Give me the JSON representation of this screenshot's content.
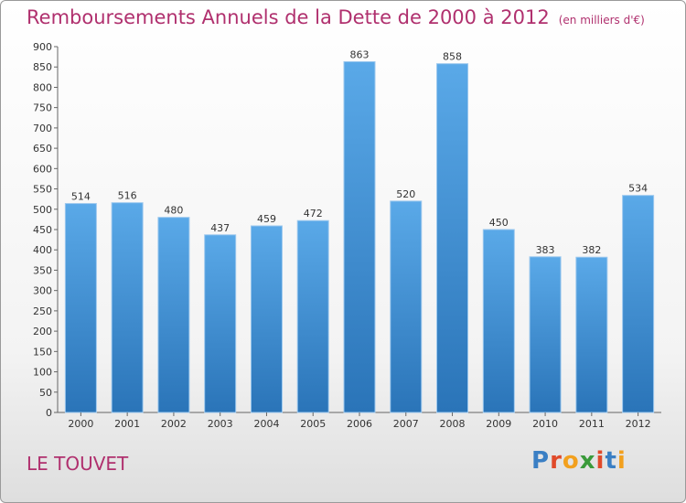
{
  "chart_data": {
    "type": "bar",
    "title": "Remboursements Annuels de la Dette de 2000 à 2012",
    "subtitle": "(en milliers d'€)",
    "categories": [
      "2000",
      "2001",
      "2002",
      "2003",
      "2004",
      "2005",
      "2006",
      "2007",
      "2008",
      "2009",
      "2010",
      "2011",
      "2012"
    ],
    "values": [
      514,
      516,
      480,
      437,
      459,
      472,
      863,
      520,
      858,
      450,
      383,
      382,
      534
    ],
    "ylim": [
      0,
      900
    ],
    "ytick_step": 50,
    "grid": false,
    "bar_color": "#3d8fd4",
    "bar_color_light": "#5aa9e8",
    "bar_color_dark": "#2a74b8"
  },
  "commune": "LE TOUVET",
  "logo": {
    "letters": [
      "P",
      "r",
      "o",
      "x",
      "i",
      "t",
      "i"
    ],
    "colors": [
      "#3a7fc4",
      "#e04a2a",
      "#f2a01e",
      "#3a9a3a",
      "#e04a2a",
      "#3a7fc4",
      "#f2a01e"
    ]
  }
}
